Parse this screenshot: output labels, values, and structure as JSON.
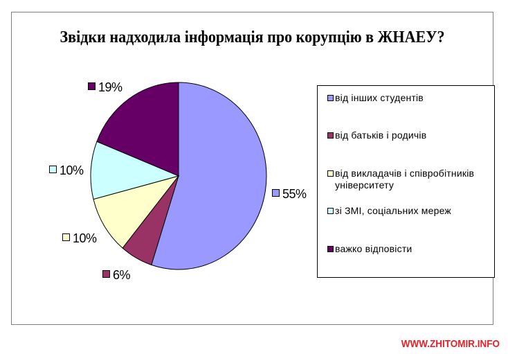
{
  "chart_data": {
    "type": "pie",
    "title": "Звідки надходила інформація про корупцію в ЖНАЕУ?",
    "categories": [
      "від інших студентів",
      "від батьків і родичів",
      "від викладачів і співробітників університету",
      "зі ЗМІ, соціальних мереж",
      "важко відповісти"
    ],
    "values": [
      55,
      6,
      10,
      10,
      19
    ],
    "value_labels": [
      "55%",
      "6%",
      "10%",
      "10%",
      "19%"
    ],
    "colors": [
      "#9999ff",
      "#993366",
      "#ffffcc",
      "#ccffff",
      "#660066"
    ],
    "legend_position": "right",
    "start_angle": "12 o'clock",
    "direction": "clockwise"
  },
  "watermark": "WWW.ZHITOMIR.INFO"
}
